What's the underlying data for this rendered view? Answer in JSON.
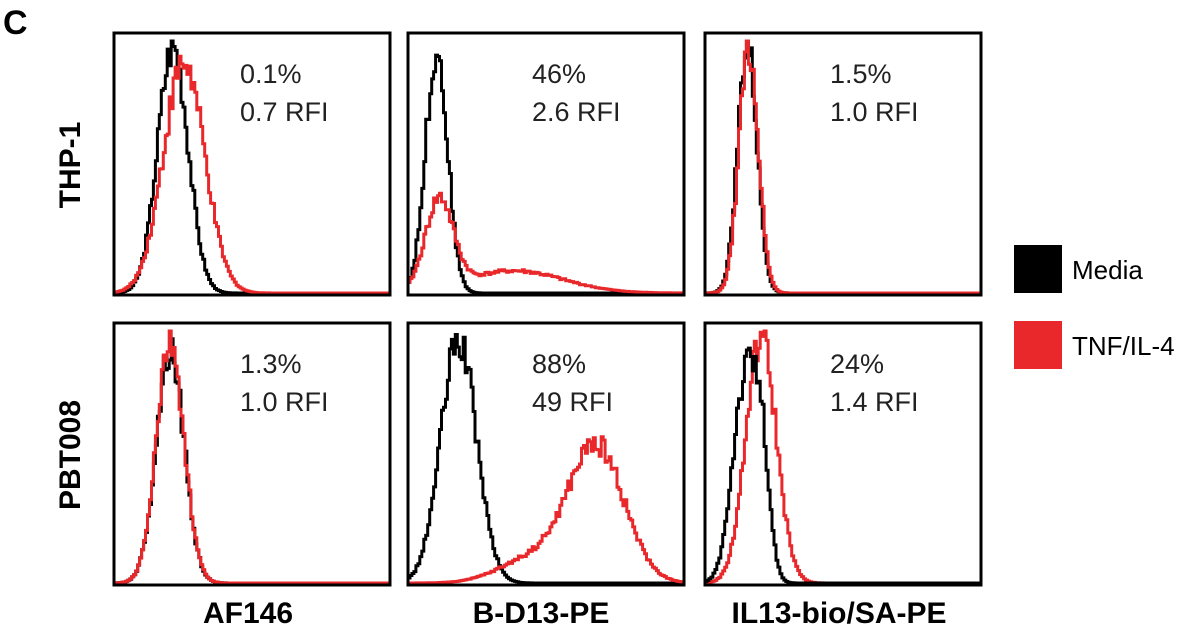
{
  "panel_letter": "C",
  "rows": [
    "THP-1",
    "PBT008"
  ],
  "columns": [
    "AF146",
    "B-D13-PE",
    "IL13-bio/SA-PE"
  ],
  "legend": [
    {
      "label": "Media",
      "color": "#000000"
    },
    {
      "label": "TNF/IL-4",
      "color": "#e8282b"
    }
  ],
  "chart_data": [
    {
      "type": "area",
      "row": "THP-1",
      "column": "AF146",
      "xlim": [
        0,
        1
      ],
      "ylim": [
        0,
        1
      ],
      "annotation": [
        "0.1%",
        "0.7 RFI"
      ],
      "series": [
        {
          "name": "Media",
          "color": "#000000",
          "peaks": [
            {
              "x": 0.21,
              "height": 1.0,
              "width": 0.055
            }
          ]
        },
        {
          "name": "TNF/IL-4",
          "color": "#e8282b",
          "peaks": [
            {
              "x": 0.25,
              "height": 0.93,
              "width": 0.075
            }
          ]
        }
      ]
    },
    {
      "type": "area",
      "row": "THP-1",
      "column": "B-D13-PE",
      "xlim": [
        0,
        1
      ],
      "ylim": [
        0,
        1
      ],
      "annotation": [
        "46%",
        "2.6 RFI"
      ],
      "series": [
        {
          "name": "Media",
          "color": "#000000",
          "peaks": [
            {
              "x": 0.1,
              "height": 0.98,
              "width": 0.04
            }
          ]
        },
        {
          "name": "TNF/IL-4",
          "color": "#e8282b",
          "peaks": [
            {
              "x": 0.11,
              "height": 0.36,
              "width": 0.05
            },
            {
              "x": 0.38,
              "height": 0.09,
              "width": 0.18
            }
          ]
        }
      ]
    },
    {
      "type": "area",
      "row": "THP-1",
      "column": "IL13-bio/SA-PE",
      "xlim": [
        0,
        1
      ],
      "ylim": [
        0,
        1
      ],
      "annotation": [
        "1.5%",
        "1.0 RFI"
      ],
      "series": [
        {
          "name": "Media",
          "color": "#000000",
          "peaks": [
            {
              "x": 0.15,
              "height": 1.0,
              "width": 0.035
            }
          ]
        },
        {
          "name": "TNF/IL-4",
          "color": "#e8282b",
          "peaks": [
            {
              "x": 0.155,
              "height": 1.0,
              "width": 0.035
            }
          ]
        }
      ]
    },
    {
      "type": "area",
      "row": "PBT008",
      "column": "AF146",
      "xlim": [
        0,
        1
      ],
      "ylim": [
        0,
        1
      ],
      "annotation": [
        "1.3%",
        "1.0 RFI"
      ],
      "series": [
        {
          "name": "Media",
          "color": "#000000",
          "peaks": [
            {
              "x": 0.2,
              "height": 0.95,
              "width": 0.05
            }
          ]
        },
        {
          "name": "TNF/IL-4",
          "color": "#e8282b",
          "peaks": [
            {
              "x": 0.2,
              "height": 0.97,
              "width": 0.05
            }
          ]
        }
      ]
    },
    {
      "type": "area",
      "row": "PBT008",
      "column": "B-D13-PE",
      "xlim": [
        0,
        1
      ],
      "ylim": [
        0,
        1
      ],
      "annotation": [
        "88%",
        "49 RFI"
      ],
      "series": [
        {
          "name": "Media",
          "color": "#000000",
          "peaks": [
            {
              "x": 0.18,
              "height": 0.98,
              "width": 0.065
            }
          ]
        },
        {
          "name": "TNF/IL-4",
          "color": "#e8282b",
          "peaks": [
            {
              "x": 0.68,
              "height": 0.55,
              "width": 0.1
            },
            {
              "x": 0.45,
              "height": 0.1,
              "width": 0.12
            }
          ]
        }
      ]
    },
    {
      "type": "area",
      "row": "PBT008",
      "column": "IL13-bio/SA-PE",
      "xlim": [
        0,
        1
      ],
      "ylim": [
        0,
        1
      ],
      "annotation": [
        "24%",
        "1.4 RFI"
      ],
      "series": [
        {
          "name": "TNF/IL-4",
          "color": "#e8282b",
          "peaks": [
            {
              "x": 0.2,
              "height": 1.0,
              "width": 0.055
            }
          ]
        },
        {
          "name": "Media",
          "color": "#000000",
          "peaks": [
            {
              "x": 0.14,
              "height": 0.8,
              "width": 0.045
            },
            {
              "x": 0.2,
              "height": 0.42,
              "width": 0.03
            }
          ]
        }
      ]
    }
  ]
}
